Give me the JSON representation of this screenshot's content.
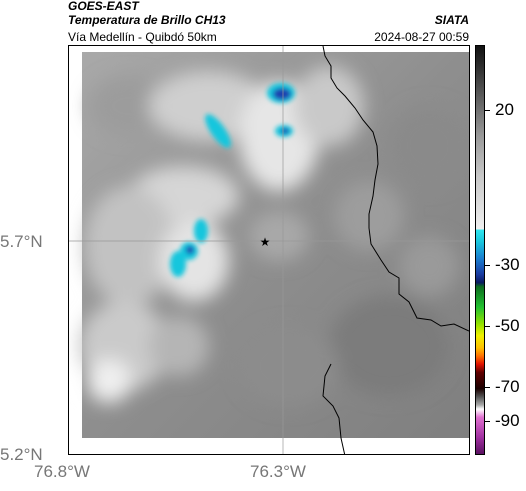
{
  "header": {
    "satellite": "GOES-EAST",
    "product": "Temperatura de Brillo CH13",
    "route": "Vía Medellín - Quibdó 50km",
    "source": "SIATA",
    "datetime": "2024-08-27 00:59"
  },
  "map": {
    "lat_ticks": [
      {
        "value": 5.7,
        "label": "5.7°N"
      },
      {
        "value": 5.2,
        "label": "5.2°N"
      }
    ],
    "lon_ticks": [
      {
        "value": -76.8,
        "label": "76.8°W"
      },
      {
        "value": -76.3,
        "label": "76.3°W"
      }
    ],
    "marker": "star-icon",
    "colors": {
      "cold_cloud_cyan": "#19c6dd",
      "cold_cloud_blue": "#1a40b0",
      "border_line": "#000000",
      "grid_line": "#999999"
    }
  },
  "colorbar": {
    "labels": [
      {
        "value": 20,
        "label": "20"
      },
      {
        "value": -30,
        "label": "-30"
      },
      {
        "value": -50,
        "label": "-50"
      },
      {
        "value": -70,
        "label": "-70"
      },
      {
        "value": -90,
        "label": "-90"
      }
    ]
  }
}
